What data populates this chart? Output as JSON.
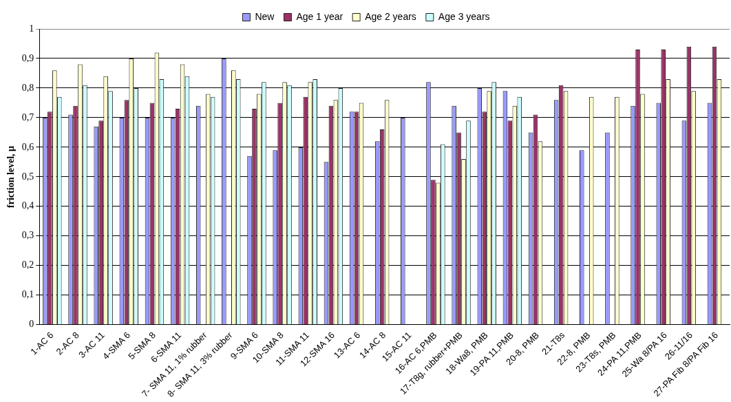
{
  "chart_data": {
    "type": "bar",
    "ylabel": "friction level, µ",
    "categories": [
      "1-AC 6",
      "2-AC 8",
      "3-AC 11",
      "4-SMA 6",
      "5-SMA 8",
      "6-SMA 11",
      "7- SMA 11, 1% rubber",
      "8- SMA 11, 3% rubber",
      "9-SMA 6",
      "10-SMA 8",
      "11-SMA 11",
      "12-SMA 16",
      "13-AC 6",
      "14-AC 8",
      "15-AC 11",
      "16-AC 6,PMB",
      "17-T8g, rubber+PMB",
      "18-Wa8, PMB",
      "19-PA 11,PMB",
      "20-8, PMB",
      "21-T8s",
      "22-8, PMB",
      "23-T8s, PMB",
      "24-PA 11,PMB",
      "25-Wa 8/PA 16",
      "26-11/16",
      "27-PA Fib 8/PA Fib 16"
    ],
    "series": [
      {
        "name": "New",
        "color": "#9999ff",
        "values": [
          0.7,
          0.71,
          0.67,
          0.7,
          0.7,
          0.7,
          0.74,
          0.9,
          0.57,
          0.59,
          0.6,
          0.55,
          0.72,
          0.62,
          0.7,
          0.82,
          0.74,
          0.8,
          0.79,
          0.65,
          0.76,
          0.59,
          0.65,
          0.74,
          0.75,
          0.69,
          0.75
        ]
      },
      {
        "name": "Age 1 year",
        "color": "#993366",
        "values": [
          0.72,
          0.74,
          0.69,
          0.76,
          0.75,
          0.73,
          null,
          null,
          0.73,
          0.75,
          0.77,
          0.74,
          0.72,
          0.66,
          null,
          0.49,
          0.65,
          0.72,
          0.69,
          0.71,
          0.81,
          null,
          null,
          0.93,
          0.93,
          0.94,
          0.94
        ]
      },
      {
        "name": "Age 2 years",
        "color": "#ffffcc",
        "values": [
          0.86,
          0.88,
          0.84,
          0.9,
          0.92,
          0.88,
          0.78,
          0.86,
          0.78,
          0.82,
          0.82,
          0.76,
          0.75,
          0.76,
          null,
          0.48,
          0.56,
          0.79,
          0.74,
          0.62,
          0.79,
          0.77,
          0.77,
          0.78,
          0.83,
          0.79,
          0.83
        ]
      },
      {
        "name": "Age 3 years",
        "color": "#ccffff",
        "values": [
          0.77,
          0.81,
          0.79,
          0.8,
          0.83,
          0.84,
          0.77,
          0.83,
          0.82,
          0.81,
          0.83,
          0.8,
          null,
          null,
          null,
          0.61,
          0.69,
          0.82,
          0.77,
          null,
          null,
          null,
          null,
          null,
          null,
          null,
          null
        ]
      }
    ],
    "ylim": [
      0,
      1
    ],
    "yticks": [
      0,
      {
        "value": 0.1,
        "label": "0,1"
      },
      {
        "value": 0.2,
        "label": "0,2"
      },
      {
        "value": 0.3,
        "label": "0,3"
      },
      {
        "value": 0.4,
        "label": "0,4"
      },
      {
        "value": 0.5,
        "label": "0,5"
      },
      {
        "value": 0.6,
        "label": "0,6"
      },
      {
        "value": 0.7,
        "label": "0,7"
      },
      {
        "value": 0.8,
        "label": "0,8"
      },
      {
        "value": 0.9,
        "label": "0,9"
      },
      1
    ],
    "grid": "y",
    "legend": "top"
  }
}
